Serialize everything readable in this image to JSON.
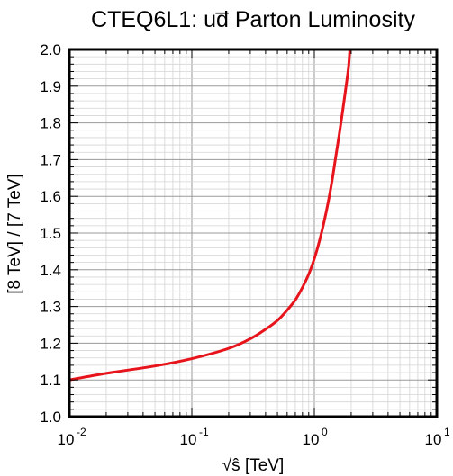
{
  "chart_data": {
    "type": "line",
    "title": "CTEQ6L1: ud̅ Parton Luminosity",
    "xlabel": "√ŝ [TeV]",
    "ylabel": "[8 TeV] / [7 TeV]",
    "xscale": "log",
    "xlim": [
      0.01,
      10
    ],
    "ylim": [
      1.0,
      2.0
    ],
    "grid": true,
    "legend": "none",
    "xticks": [
      {
        "base": "10",
        "exp": "-2",
        "value": 0.01
      },
      {
        "base": "10",
        "exp": "-1",
        "value": 0.1
      },
      {
        "base": "10",
        "exp": "0",
        "value": 1
      },
      {
        "base": "10",
        "exp": "1",
        "value": 10
      }
    ],
    "yticks": [
      "1.0",
      "1.1",
      "1.2",
      "1.3",
      "1.4",
      "1.5",
      "1.6",
      "1.7",
      "1.8",
      "1.9",
      "2.0"
    ],
    "series": [
      {
        "color": "#e8141c",
        "x": [
          0.01,
          0.02,
          0.05,
          0.1,
          0.2,
          0.3,
          0.4,
          0.5,
          0.6,
          0.7,
          0.8,
          0.9,
          1.0,
          1.1,
          1.2,
          1.3,
          1.4,
          1.5,
          1.6,
          1.7,
          1.8,
          1.9,
          1.95
        ],
        "y": [
          1.1,
          1.118,
          1.138,
          1.158,
          1.186,
          1.212,
          1.238,
          1.262,
          1.29,
          1.318,
          1.352,
          1.388,
          1.43,
          1.478,
          1.53,
          1.585,
          1.645,
          1.71,
          1.77,
          1.83,
          1.89,
          1.95,
          2.0
        ]
      }
    ]
  }
}
